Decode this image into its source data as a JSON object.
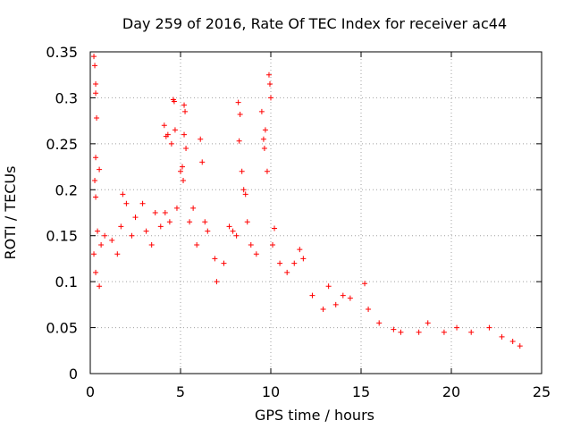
{
  "chart_data": {
    "type": "scatter",
    "title": "Day 259 of 2016, Rate Of TEC Index for receiver ac44",
    "xlabel": "GPS time / hours",
    "ylabel": "ROTI / TECUs",
    "xlim": [
      0,
      25
    ],
    "ylim": [
      0,
      0.35
    ],
    "xticks": [
      0,
      5,
      10,
      15,
      20,
      25
    ],
    "yticks": [
      0,
      0.05,
      0.1,
      0.15,
      0.2,
      0.25,
      0.3,
      0.35
    ],
    "xtick_labels": [
      "0",
      "5",
      "10",
      "15",
      "20",
      "25"
    ],
    "ytick_labels": [
      "0",
      "0.05",
      "0.1",
      "0.15",
      "0.2",
      "0.25",
      "0.3",
      "0.35"
    ],
    "grid": true,
    "marker": "+",
    "color": "#ff0000",
    "series": [
      {
        "name": "ROTI",
        "points": [
          [
            0.2,
            0.345
          ],
          [
            0.25,
            0.335
          ],
          [
            0.3,
            0.315
          ],
          [
            0.3,
            0.305
          ],
          [
            0.35,
            0.278
          ],
          [
            0.3,
            0.235
          ],
          [
            0.25,
            0.21
          ],
          [
            0.3,
            0.192
          ],
          [
            0.5,
            0.222
          ],
          [
            0.4,
            0.155
          ],
          [
            0.6,
            0.14
          ],
          [
            0.2,
            0.13
          ],
          [
            0.3,
            0.11
          ],
          [
            0.5,
            0.095
          ],
          [
            0.8,
            0.15
          ],
          [
            1.2,
            0.145
          ],
          [
            1.5,
            0.13
          ],
          [
            1.7,
            0.16
          ],
          [
            1.8,
            0.195
          ],
          [
            2.0,
            0.185
          ],
          [
            2.3,
            0.15
          ],
          [
            2.5,
            0.17
          ],
          [
            2.9,
            0.185
          ],
          [
            3.1,
            0.155
          ],
          [
            3.4,
            0.14
          ],
          [
            3.6,
            0.175
          ],
          [
            3.9,
            0.16
          ],
          [
            4.1,
            0.27
          ],
          [
            4.2,
            0.258
          ],
          [
            4.3,
            0.26
          ],
          [
            4.15,
            0.175
          ],
          [
            4.4,
            0.165
          ],
          [
            4.6,
            0.298
          ],
          [
            4.65,
            0.296
          ],
          [
            4.5,
            0.25
          ],
          [
            4.7,
            0.265
          ],
          [
            4.8,
            0.18
          ],
          [
            5.0,
            0.22
          ],
          [
            5.1,
            0.225
          ],
          [
            5.2,
            0.292
          ],
          [
            5.25,
            0.285
          ],
          [
            5.2,
            0.26
          ],
          [
            5.3,
            0.245
          ],
          [
            5.15,
            0.21
          ],
          [
            5.5,
            0.165
          ],
          [
            5.7,
            0.18
          ],
          [
            5.9,
            0.14
          ],
          [
            6.1,
            0.255
          ],
          [
            6.2,
            0.23
          ],
          [
            6.35,
            0.165
          ],
          [
            6.5,
            0.155
          ],
          [
            6.9,
            0.125
          ],
          [
            7.0,
            0.1
          ],
          [
            7.4,
            0.12
          ],
          [
            7.7,
            0.16
          ],
          [
            7.9,
            0.155
          ],
          [
            8.2,
            0.295
          ],
          [
            8.3,
            0.282
          ],
          [
            8.25,
            0.253
          ],
          [
            8.4,
            0.22
          ],
          [
            8.5,
            0.2
          ],
          [
            8.6,
            0.195
          ],
          [
            8.7,
            0.165
          ],
          [
            8.1,
            0.15
          ],
          [
            8.9,
            0.14
          ],
          [
            9.2,
            0.13
          ],
          [
            9.5,
            0.285
          ],
          [
            9.6,
            0.255
          ],
          [
            9.7,
            0.265
          ],
          [
            9.65,
            0.245
          ],
          [
            9.9,
            0.325
          ],
          [
            9.95,
            0.315
          ],
          [
            10.0,
            0.3
          ],
          [
            9.8,
            0.22
          ],
          [
            10.2,
            0.158
          ],
          [
            10.1,
            0.14
          ],
          [
            10.5,
            0.12
          ],
          [
            10.9,
            0.11
          ],
          [
            11.3,
            0.12
          ],
          [
            11.6,
            0.135
          ],
          [
            11.8,
            0.125
          ],
          [
            12.3,
            0.085
          ],
          [
            12.9,
            0.07
          ],
          [
            13.2,
            0.095
          ],
          [
            13.6,
            0.075
          ],
          [
            14.0,
            0.085
          ],
          [
            14.4,
            0.082
          ],
          [
            15.2,
            0.098
          ],
          [
            15.4,
            0.07
          ],
          [
            16.0,
            0.055
          ],
          [
            16.8,
            0.048
          ],
          [
            17.2,
            0.045
          ],
          [
            18.2,
            0.045
          ],
          [
            18.7,
            0.055
          ],
          [
            19.6,
            0.045
          ],
          [
            20.3,
            0.05
          ],
          [
            21.1,
            0.045
          ],
          [
            22.1,
            0.05
          ],
          [
            22.8,
            0.04
          ],
          [
            23.4,
            0.035
          ],
          [
            23.8,
            0.03
          ]
        ]
      }
    ]
  }
}
